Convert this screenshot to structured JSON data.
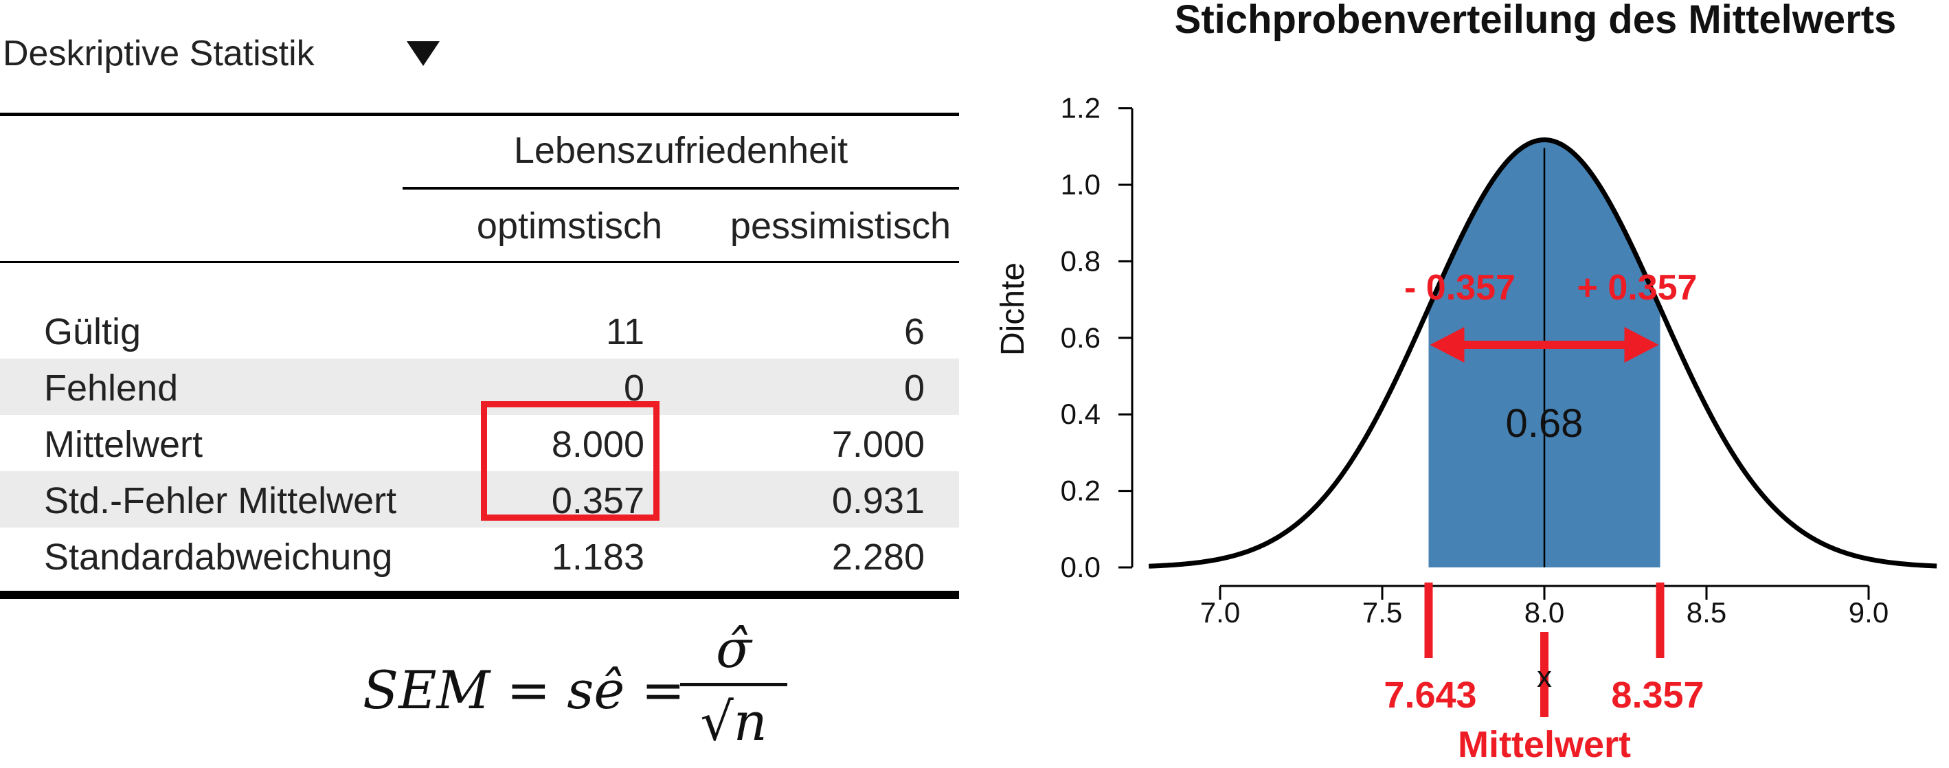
{
  "panel": {
    "title": "Deskriptive Statistik",
    "toggle_icon": "triangle-down-icon"
  },
  "table": {
    "group_header": "Lebenszufriedenheit",
    "columns": [
      "optimstisch",
      "pessimistisch"
    ],
    "rows": [
      {
        "label": "Gültig",
        "values": [
          "11",
          "6"
        ]
      },
      {
        "label": "Fehlend",
        "values": [
          "0",
          "0"
        ]
      },
      {
        "label": "Mittelwert",
        "values": [
          "8.000",
          "7.000"
        ]
      },
      {
        "label": "Std.-Fehler Mittelwert",
        "values": [
          "0.357",
          "0.931"
        ]
      },
      {
        "label": "Standardabweichung",
        "values": [
          "1.183",
          "2.280"
        ]
      }
    ],
    "highlight_color": "#ee1c25"
  },
  "formula": {
    "lhs": "SEM = sê =",
    "numerator": "σ̂",
    "denominator": "√n"
  },
  "chart_data": {
    "type": "area",
    "title": "Stichprobenverteilung des Mittelwerts",
    "ylabel": "Dichte",
    "xlabel": "",
    "xlim": [
      6.8,
      9.2
    ],
    "ylim": [
      0,
      1.2
    ],
    "x_ticks": [
      "7.0",
      "7.5",
      "8.0",
      "8.5",
      "9.0"
    ],
    "y_ticks": [
      "0.0",
      "0.2",
      "0.4",
      "0.6",
      "0.8",
      "1.0",
      "1.2"
    ],
    "distribution": {
      "name": "normal",
      "mean": 8.0,
      "sd": 0.357
    },
    "shaded_region": {
      "from": 7.643,
      "to": 8.357,
      "area_label": "0.68",
      "color": "#4682b4"
    },
    "annotations": {
      "minus_label": "- 0.357",
      "plus_label": "+ 0.357",
      "lower_label": "7.643",
      "upper_label": "8.357",
      "mean_symbol": "x",
      "mean_label": "Mittelwert",
      "color": "#ee1c25"
    }
  }
}
